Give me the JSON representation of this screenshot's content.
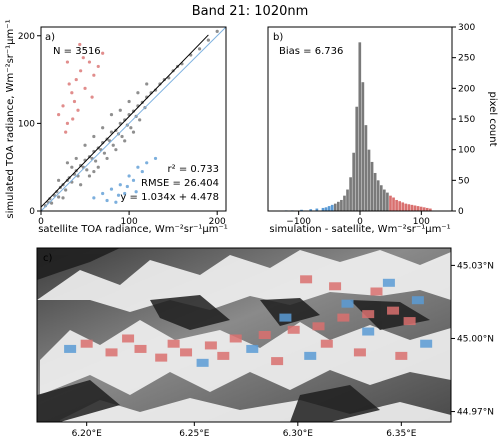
{
  "figure": {
    "title": "Band 21: 1020nm"
  },
  "chart_data": [
    {
      "type": "scatter",
      "panel_label": "a)",
      "xlabel": "satellite TOA radiance, Wm⁻²sr⁻¹μm⁻¹",
      "ylabel": "simulated TOA radiance, Wm⁻²sr⁻¹μm⁻¹",
      "xlim": [
        0,
        210
      ],
      "ylim": [
        0,
        210
      ],
      "xticks": [
        0,
        100,
        200
      ],
      "yticks": [
        0,
        100,
        200
      ],
      "n_text": "N = 3516",
      "stats": {
        "r2": "r² = 0.733",
        "rmse": "RMSE = 26.404",
        "fit": "y = 1.034x + 4.478"
      },
      "fit_line": {
        "slope": 1.034,
        "intercept": 4.478
      },
      "one_to_one_line": true,
      "colors": {
        "main": "#333333",
        "over": "#d9706f",
        "under": "#5b9bd5",
        "fit": "#000000",
        "identity": "#7fb2e0"
      },
      "sample_points": {
        "main": [
          [
            5,
            6
          ],
          [
            8,
            10
          ],
          [
            10,
            14
          ],
          [
            12,
            9
          ],
          [
            15,
            18
          ],
          [
            18,
            22
          ],
          [
            20,
            16
          ],
          [
            22,
            27
          ],
          [
            25,
            30
          ],
          [
            28,
            24
          ],
          [
            30,
            35
          ],
          [
            32,
            38
          ],
          [
            35,
            33
          ],
          [
            38,
            42
          ],
          [
            40,
            46
          ],
          [
            42,
            40
          ],
          [
            45,
            52
          ],
          [
            48,
            50
          ],
          [
            50,
            58
          ],
          [
            52,
            47
          ],
          [
            55,
            62
          ],
          [
            58,
            60
          ],
          [
            60,
            68
          ],
          [
            62,
            57
          ],
          [
            65,
            72
          ],
          [
            68,
            70
          ],
          [
            70,
            78
          ],
          [
            72,
            66
          ],
          [
            75,
            82
          ],
          [
            78,
            80
          ],
          [
            80,
            90
          ],
          [
            82,
            75
          ],
          [
            85,
            92
          ],
          [
            88,
            88
          ],
          [
            90,
            100
          ],
          [
            92,
            85
          ],
          [
            95,
            104
          ],
          [
            98,
            98
          ],
          [
            100,
            110
          ],
          [
            102,
            95
          ],
          [
            105,
            114
          ],
          [
            108,
            108
          ],
          [
            110,
            120
          ],
          [
            112,
            104
          ],
          [
            115,
            124
          ],
          [
            118,
            118
          ],
          [
            120,
            130
          ],
          [
            125,
            135
          ],
          [
            130,
            138
          ],
          [
            135,
            145
          ],
          [
            140,
            150
          ],
          [
            145,
            152
          ],
          [
            150,
            160
          ],
          [
            155,
            165
          ],
          [
            160,
            168
          ],
          [
            170,
            178
          ],
          [
            180,
            185
          ],
          [
            190,
            195
          ],
          [
            200,
            205
          ],
          [
            30,
            55
          ],
          [
            40,
            60
          ],
          [
            50,
            75
          ],
          [
            60,
            85
          ],
          [
            70,
            95
          ],
          [
            80,
            110
          ],
          [
            45,
            30
          ],
          [
            55,
            40
          ],
          [
            65,
            50
          ],
          [
            75,
            60
          ],
          [
            85,
            70
          ],
          [
            95,
            80
          ],
          [
            105,
            90
          ],
          [
            20,
            35
          ],
          [
            35,
            50
          ],
          [
            25,
            15
          ],
          [
            60,
            45
          ],
          [
            90,
            115
          ],
          [
            100,
            125
          ],
          [
            110,
            135
          ],
          [
            120,
            145
          ]
        ],
        "over": [
          [
            20,
            110
          ],
          [
            25,
            120
          ],
          [
            30,
            100
          ],
          [
            35,
            135
          ],
          [
            40,
            150
          ],
          [
            28,
            90
          ],
          [
            45,
            160
          ],
          [
            38,
            125
          ],
          [
            50,
            140
          ],
          [
            55,
            170
          ],
          [
            32,
            145
          ],
          [
            60,
            155
          ],
          [
            42,
            115
          ],
          [
            48,
            175
          ],
          [
            65,
            165
          ],
          [
            70,
            180
          ],
          [
            36,
            105
          ],
          [
            58,
            130
          ],
          [
            44,
            190
          ],
          [
            30,
            170
          ]
        ],
        "under": [
          [
            60,
            15
          ],
          [
            70,
            20
          ],
          [
            80,
            25
          ],
          [
            90,
            30
          ],
          [
            100,
            40
          ],
          [
            85,
            10
          ],
          [
            110,
            50
          ],
          [
            95,
            20
          ],
          [
            75,
            12
          ],
          [
            105,
            35
          ],
          [
            115,
            45
          ],
          [
            120,
            55
          ],
          [
            88,
            18
          ],
          [
            98,
            28
          ],
          [
            130,
            60
          ],
          [
            108,
            22
          ]
        ]
      }
    },
    {
      "type": "bar",
      "panel_label": "b)",
      "xlabel": "simulation - satellite, Wm⁻²sr⁻¹μm⁻¹",
      "ylabel": "pixel count",
      "xlim": [
        -150,
        150
      ],
      "ylim": [
        0,
        300
      ],
      "xticks": [
        -100,
        0,
        100
      ],
      "yticks": [
        0,
        50,
        100,
        150,
        200,
        250,
        300
      ],
      "bias_text": "Bias = 6.736",
      "bin_width": 5,
      "bins": [
        {
          "x": -120,
          "v": 1,
          "c": "under"
        },
        {
          "x": -110,
          "v": 1,
          "c": "under"
        },
        {
          "x": -95,
          "v": 2,
          "c": "under"
        },
        {
          "x": -80,
          "v": 3,
          "c": "under"
        },
        {
          "x": -70,
          "v": 4,
          "c": "under"
        },
        {
          "x": -60,
          "v": 5,
          "c": "under"
        },
        {
          "x": -55,
          "v": 6,
          "c": "under"
        },
        {
          "x": -50,
          "v": 8,
          "c": "under"
        },
        {
          "x": -45,
          "v": 10,
          "c": "under"
        },
        {
          "x": -40,
          "v": 12,
          "c": "main"
        },
        {
          "x": -35,
          "v": 15,
          "c": "main"
        },
        {
          "x": -30,
          "v": 18,
          "c": "main"
        },
        {
          "x": -25,
          "v": 25,
          "c": "main"
        },
        {
          "x": -20,
          "v": 35,
          "c": "main"
        },
        {
          "x": -15,
          "v": 55,
          "c": "main"
        },
        {
          "x": -10,
          "v": 95,
          "c": "main"
        },
        {
          "x": -5,
          "v": 170,
          "c": "main"
        },
        {
          "x": 0,
          "v": 275,
          "c": "main"
        },
        {
          "x": 5,
          "v": 210,
          "c": "main"
        },
        {
          "x": 10,
          "v": 140,
          "c": "main"
        },
        {
          "x": 15,
          "v": 100,
          "c": "main"
        },
        {
          "x": 20,
          "v": 80,
          "c": "main"
        },
        {
          "x": 25,
          "v": 62,
          "c": "main"
        },
        {
          "x": 30,
          "v": 50,
          "c": "main"
        },
        {
          "x": 35,
          "v": 42,
          "c": "main"
        },
        {
          "x": 40,
          "v": 35,
          "c": "main"
        },
        {
          "x": 45,
          "v": 30,
          "c": "main"
        },
        {
          "x": 50,
          "v": 25,
          "c": "over"
        },
        {
          "x": 55,
          "v": 22,
          "c": "over"
        },
        {
          "x": 60,
          "v": 18,
          "c": "over"
        },
        {
          "x": 65,
          "v": 16,
          "c": "over"
        },
        {
          "x": 70,
          "v": 14,
          "c": "over"
        },
        {
          "x": 75,
          "v": 12,
          "c": "over"
        },
        {
          "x": 80,
          "v": 11,
          "c": "over"
        },
        {
          "x": 85,
          "v": 10,
          "c": "over"
        },
        {
          "x": 90,
          "v": 9,
          "c": "over"
        },
        {
          "x": 95,
          "v": 8,
          "c": "over"
        },
        {
          "x": 100,
          "v": 7,
          "c": "over"
        },
        {
          "x": 105,
          "v": 6,
          "c": "over"
        },
        {
          "x": 110,
          "v": 5,
          "c": "over"
        },
        {
          "x": 115,
          "v": 4,
          "c": "over"
        }
      ],
      "colors": {
        "main": "#7a7a7a",
        "over": "#d9706f",
        "under": "#5b9bd5"
      }
    },
    {
      "type": "map",
      "panel_label": "c)",
      "x_ticklabels": [
        "6.20°E",
        "6.25°E",
        "6.30°E",
        "6.35°E"
      ],
      "y_ticklabels": [
        "45.03°N",
        "45.00°N",
        "44.97°N"
      ],
      "colors": {
        "over": "#d9706f",
        "under": "#5b9bd5"
      }
    }
  ]
}
